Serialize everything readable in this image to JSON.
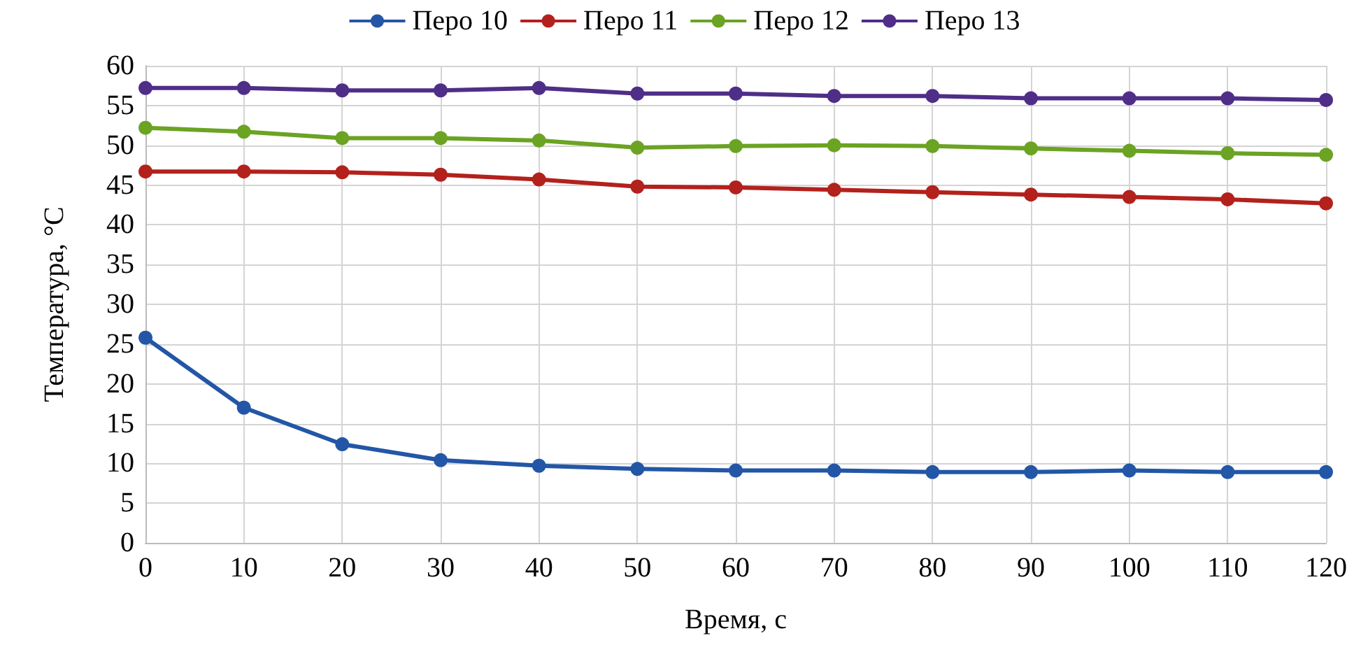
{
  "chart_data": {
    "type": "line",
    "xlabel": "Время, с",
    "ylabel": "Температура, °С",
    "x": [
      0,
      10,
      20,
      30,
      40,
      50,
      60,
      70,
      80,
      90,
      100,
      110,
      120
    ],
    "series": [
      {
        "name": "Перо 10",
        "color": "#2356a6",
        "values": [
          25.8,
          17.0,
          12.4,
          10.4,
          9.7,
          9.3,
          9.1,
          9.1,
          8.9,
          8.9,
          9.1,
          8.9,
          8.9
        ]
      },
      {
        "name": "Перо 11",
        "color": "#b3211d",
        "values": [
          46.7,
          46.7,
          46.6,
          46.3,
          45.7,
          44.8,
          44.7,
          44.4,
          44.1,
          43.8,
          43.5,
          43.2,
          42.7
        ]
      },
      {
        "name": "Перо 12",
        "color": "#6ba323",
        "values": [
          52.2,
          51.7,
          50.9,
          50.9,
          50.6,
          49.7,
          49.9,
          50.0,
          49.9,
          49.6,
          49.3,
          49.0,
          48.8
        ]
      },
      {
        "name": "Перо 13",
        "color": "#4f2e88",
        "values": [
          57.2,
          57.2,
          56.9,
          56.9,
          57.2,
          56.5,
          56.5,
          56.2,
          56.2,
          55.9,
          55.9,
          55.9,
          55.7
        ]
      }
    ],
    "xlim": [
      0,
      120
    ],
    "xticks": [
      0,
      10,
      20,
      30,
      40,
      50,
      60,
      70,
      80,
      90,
      100,
      110,
      120
    ],
    "ylim": [
      0,
      60
    ],
    "yticks": [
      0,
      5,
      10,
      15,
      20,
      25,
      30,
      35,
      40,
      45,
      50,
      55,
      60
    ],
    "grid": true,
    "legend": "top",
    "marker": "circle",
    "line_style": "solid"
  }
}
